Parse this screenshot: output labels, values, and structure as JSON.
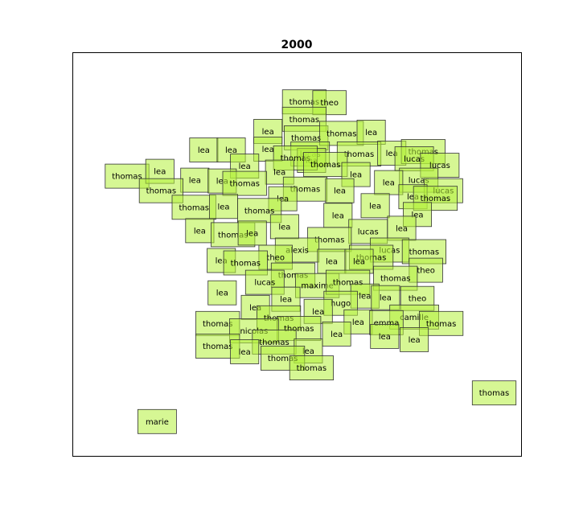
{
  "chart_data": {
    "type": "scatter",
    "title": "2000",
    "xlabel": "",
    "ylabel": "",
    "xlim": [
      0,
      100
    ],
    "ylim": [
      0,
      100
    ],
    "axis_ticks": false,
    "grid": false,
    "marker_style": "text-label",
    "colors": {
      "box_fill": "#b5f03c",
      "box_edge": "#333333",
      "text": "#000000"
    },
    "points": [
      {
        "label": "thomas",
        "x": 51.6,
        "y": 87.8
      },
      {
        "label": "theo",
        "x": 57.2,
        "y": 87.6
      },
      {
        "label": "thomas",
        "x": 51.6,
        "y": 83.5
      },
      {
        "label": "lea",
        "x": 43.5,
        "y": 80.5
      },
      {
        "label": "thomas",
        "x": 52.0,
        "y": 78.9
      },
      {
        "label": "thomas",
        "x": 59.9,
        "y": 80.0
      },
      {
        "label": "lea",
        "x": 66.5,
        "y": 80.3
      },
      {
        "label": "lea",
        "x": 29.2,
        "y": 75.9
      },
      {
        "label": "lea",
        "x": 35.3,
        "y": 75.9
      },
      {
        "label": "lea",
        "x": 43.5,
        "y": 76.1
      },
      {
        "label": "lucas",
        "x": 52.9,
        "y": 74.9
      },
      {
        "label": "lea",
        "x": 53.2,
        "y": 73.3
      },
      {
        "label": "thomas",
        "x": 49.6,
        "y": 73.9
      },
      {
        "label": "thomas",
        "x": 63.8,
        "y": 74.9
      },
      {
        "label": "lea",
        "x": 71.1,
        "y": 75.1
      },
      {
        "label": "thomas",
        "x": 78.1,
        "y": 75.5
      },
      {
        "label": "lucas",
        "x": 76.1,
        "y": 73.7
      },
      {
        "label": "thomas",
        "x": 56.3,
        "y": 72.3
      },
      {
        "label": "lea",
        "x": 38.3,
        "y": 71.9
      },
      {
        "label": "lea",
        "x": 46.1,
        "y": 70.4
      },
      {
        "label": "lea",
        "x": 63.1,
        "y": 69.8
      },
      {
        "label": "lucas",
        "x": 81.8,
        "y": 72.1
      },
      {
        "label": "thomas",
        "x": 12.1,
        "y": 69.4
      },
      {
        "label": "lea",
        "x": 19.4,
        "y": 70.6
      },
      {
        "label": "lea",
        "x": 27.2,
        "y": 68.4
      },
      {
        "label": "lea",
        "x": 33.3,
        "y": 68.2
      },
      {
        "label": "thomas",
        "x": 38.3,
        "y": 67.6
      },
      {
        "label": "lucas",
        "x": 77.1,
        "y": 68.4
      },
      {
        "label": "lea",
        "x": 70.4,
        "y": 67.8
      },
      {
        "label": "thomas",
        "x": 19.7,
        "y": 65.8
      },
      {
        "label": "thomas",
        "x": 51.8,
        "y": 66.2
      },
      {
        "label": "lea",
        "x": 59.5,
        "y": 65.8
      },
      {
        "label": "lea",
        "x": 46.8,
        "y": 63.8
      },
      {
        "label": "lucas",
        "x": 82.6,
        "y": 65.8
      },
      {
        "label": "lea",
        "x": 75.8,
        "y": 64.3
      },
      {
        "label": "thomas",
        "x": 80.8,
        "y": 63.9
      },
      {
        "label": "thomas",
        "x": 27.0,
        "y": 61.7
      },
      {
        "label": "lea",
        "x": 33.6,
        "y": 61.9
      },
      {
        "label": "thomas",
        "x": 41.6,
        "y": 60.9
      },
      {
        "label": "lea",
        "x": 67.4,
        "y": 62.1
      },
      {
        "label": "lea",
        "x": 76.8,
        "y": 59.9
      },
      {
        "label": "lea",
        "x": 59.1,
        "y": 59.7
      },
      {
        "label": "lea",
        "x": 28.3,
        "y": 55.9
      },
      {
        "label": "thomas",
        "x": 35.7,
        "y": 54.9
      },
      {
        "label": "lea",
        "x": 40.0,
        "y": 55.3
      },
      {
        "label": "lea",
        "x": 47.2,
        "y": 56.9
      },
      {
        "label": "lucas",
        "x": 65.8,
        "y": 55.7
      },
      {
        "label": "lea",
        "x": 73.3,
        "y": 56.5
      },
      {
        "label": "thomas",
        "x": 57.2,
        "y": 53.7
      },
      {
        "label": "alexis",
        "x": 50.0,
        "y": 51.1
      },
      {
        "label": "lucas",
        "x": 70.6,
        "y": 51.1
      },
      {
        "label": "thomas",
        "x": 78.3,
        "y": 50.7
      },
      {
        "label": "theo",
        "x": 45.2,
        "y": 49.3
      },
      {
        "label": "thomas",
        "x": 66.5,
        "y": 49.3
      },
      {
        "label": "lea",
        "x": 33.1,
        "y": 48.5
      },
      {
        "label": "thomas",
        "x": 38.5,
        "y": 47.9
      },
      {
        "label": "lea",
        "x": 57.7,
        "y": 48.3
      },
      {
        "label": "lea",
        "x": 63.8,
        "y": 48.3
      },
      {
        "label": "theo",
        "x": 78.7,
        "y": 46.1
      },
      {
        "label": "thomas",
        "x": 49.1,
        "y": 44.9
      },
      {
        "label": "thomas",
        "x": 71.9,
        "y": 44.1
      },
      {
        "label": "lucas",
        "x": 42.8,
        "y": 43.1
      },
      {
        "label": "maxime",
        "x": 54.5,
        "y": 42.3
      },
      {
        "label": "thomas",
        "x": 61.3,
        "y": 43.1
      },
      {
        "label": "lea",
        "x": 33.3,
        "y": 40.5
      },
      {
        "label": "lea",
        "x": 47.5,
        "y": 38.9
      },
      {
        "label": "lea",
        "x": 65.1,
        "y": 39.7
      },
      {
        "label": "lea",
        "x": 69.7,
        "y": 39.3
      },
      {
        "label": "theo",
        "x": 76.8,
        "y": 39.1
      },
      {
        "label": "hugo",
        "x": 59.7,
        "y": 37.9
      },
      {
        "label": "lea",
        "x": 40.7,
        "y": 36.9
      },
      {
        "label": "lea",
        "x": 54.7,
        "y": 35.9
      },
      {
        "label": "thomas",
        "x": 45.9,
        "y": 34.3
      },
      {
        "label": "camille",
        "x": 76.1,
        "y": 34.5
      },
      {
        "label": "thomas",
        "x": 32.3,
        "y": 32.9
      },
      {
        "label": "lea",
        "x": 63.6,
        "y": 33.3
      },
      {
        "label": "emma",
        "x": 69.9,
        "y": 33.1
      },
      {
        "label": "thomas",
        "x": 82.1,
        "y": 32.9
      },
      {
        "label": "thomas",
        "x": 50.4,
        "y": 31.7
      },
      {
        "label": "nicolas",
        "x": 40.4,
        "y": 31.1
      },
      {
        "label": "lea",
        "x": 58.8,
        "y": 30.3
      },
      {
        "label": "lea",
        "x": 69.5,
        "y": 29.7
      },
      {
        "label": "lea",
        "x": 76.1,
        "y": 28.9
      },
      {
        "label": "thomas",
        "x": 44.9,
        "y": 28.3
      },
      {
        "label": "thomas",
        "x": 32.3,
        "y": 27.3
      },
      {
        "label": "lea",
        "x": 38.3,
        "y": 25.9
      },
      {
        "label": "lea",
        "x": 52.5,
        "y": 26.1
      },
      {
        "label": "thomas",
        "x": 46.8,
        "y": 24.3
      },
      {
        "label": "thomas",
        "x": 53.2,
        "y": 21.9
      },
      {
        "label": "thomas",
        "x": 93.9,
        "y": 15.7
      },
      {
        "label": "marie",
        "x": 18.8,
        "y": 8.6
      }
    ]
  }
}
